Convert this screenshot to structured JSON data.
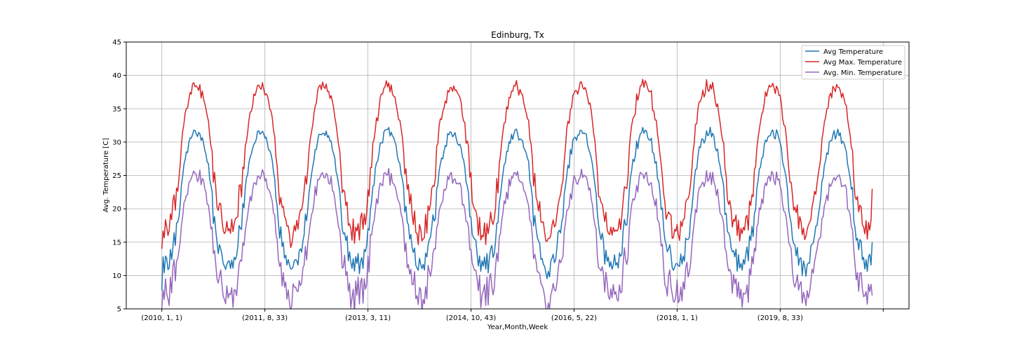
{
  "chart_data": {
    "type": "line",
    "title": "Edinburg, Tx",
    "xlabel": "Year,Month,Week",
    "ylabel": "Avg. Temperature [C]",
    "ylim": [
      5,
      45
    ],
    "yticks": [
      5,
      10,
      15,
      20,
      25,
      30,
      35,
      40,
      45
    ],
    "xticks": [
      {
        "week_index": 0,
        "label": "(2010, 1, 1)"
      },
      {
        "week_index": 84,
        "label": "(2011, 8, 33)"
      },
      {
        "week_index": 168,
        "label": "(2013, 3, 11)"
      },
      {
        "week_index": 252,
        "label": "(2014, 10, 43)"
      },
      {
        "week_index": 336,
        "label": "(2016, 5, 22)"
      },
      {
        "week_index": 420,
        "label": "(2018, 1, 1)"
      },
      {
        "week_index": 504,
        "label": "(2019, 8, 33)"
      },
      {
        "week_index": 588,
        "label": ""
      }
    ],
    "x_count": 580,
    "xlim_index": [
      -29,
      609
    ],
    "grid": true,
    "legend_position": "upper right",
    "series": [
      {
        "name": "Avg Temperature",
        "color": "#1f77b4",
        "seasonal": {
          "winter_low": 11.5,
          "summer_high": 31.5,
          "noise": 2.6
        },
        "first_value": 7.8,
        "last_value": 15.0
      },
      {
        "name": "Avg Max. Temperature",
        "color": "#d62728",
        "seasonal": {
          "winter_low": 16.5,
          "summer_high": 38.5,
          "noise": 3.0
        },
        "first_value": 14.0,
        "last_value": 23.0
      },
      {
        "name": "Avg. Min. Temperature",
        "color": "#9467bd",
        "seasonal": {
          "winter_low": 7.0,
          "summer_high": 25.0,
          "noise": 3.6
        },
        "first_value": 5.0,
        "last_value": 7.0
      }
    ]
  }
}
